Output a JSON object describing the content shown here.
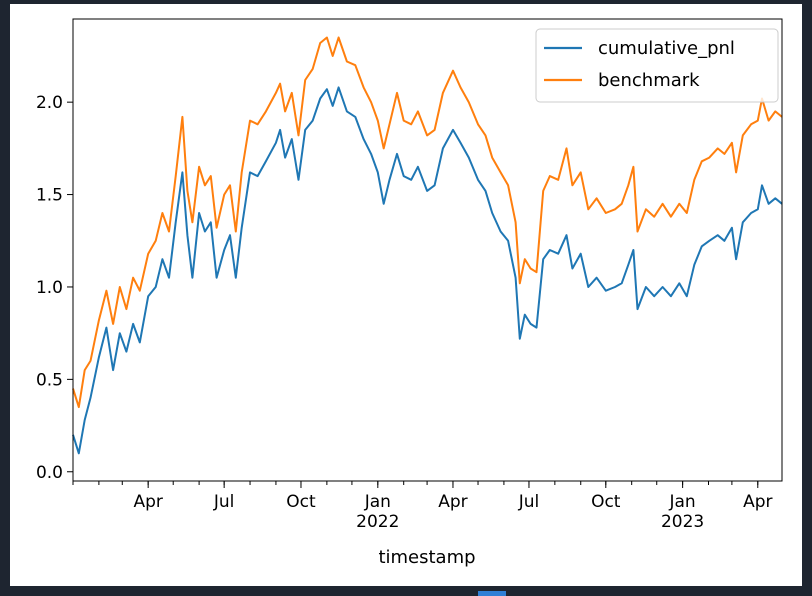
{
  "colors": {
    "background": "#1e2530",
    "figure": "#ffffff",
    "series_pnl": "#1f77b4",
    "series_benchmark": "#ff7f0e",
    "taskbar_accent": "#2f7fd6"
  },
  "chart_data": {
    "type": "line",
    "title": "",
    "xlabel": "timestamp",
    "ylabel": "",
    "grid": false,
    "legend_position": "top-right",
    "x_range": [
      "2021-01-01",
      "2023-04-30"
    ],
    "ylim": [
      -0.05,
      2.45
    ],
    "y_ticks": [
      0.0,
      0.5,
      1.0,
      1.5,
      2.0
    ],
    "y_tick_labels": [
      "0.0",
      "0.5",
      "1.0",
      "1.5",
      "2.0"
    ],
    "x_ticks": [
      {
        "date": "2021-04-01",
        "label": "Apr",
        "sublabel": ""
      },
      {
        "date": "2021-07-01",
        "label": "Jul",
        "sublabel": ""
      },
      {
        "date": "2021-10-01",
        "label": "Oct",
        "sublabel": ""
      },
      {
        "date": "2022-01-01",
        "label": "Jan",
        "sublabel": "2022"
      },
      {
        "date": "2022-04-01",
        "label": "Apr",
        "sublabel": ""
      },
      {
        "date": "2022-07-01",
        "label": "Jul",
        "sublabel": ""
      },
      {
        "date": "2022-10-01",
        "label": "Oct",
        "sublabel": ""
      },
      {
        "date": "2023-01-01",
        "label": "Jan",
        "sublabel": "2023"
      },
      {
        "date": "2023-04-01",
        "label": "Apr",
        "sublabel": ""
      }
    ],
    "series": [
      {
        "name": "cumulative_pnl",
        "color": "#1f77b4",
        "points": [
          [
            "2021-01-01",
            0.2
          ],
          [
            "2021-01-08",
            0.1
          ],
          [
            "2021-01-15",
            0.28
          ],
          [
            "2021-01-22",
            0.4
          ],
          [
            "2021-02-01",
            0.62
          ],
          [
            "2021-02-10",
            0.78
          ],
          [
            "2021-02-18",
            0.55
          ],
          [
            "2021-02-26",
            0.75
          ],
          [
            "2021-03-06",
            0.65
          ],
          [
            "2021-03-14",
            0.8
          ],
          [
            "2021-03-22",
            0.7
          ],
          [
            "2021-04-01",
            0.95
          ],
          [
            "2021-04-10",
            1.0
          ],
          [
            "2021-04-18",
            1.15
          ],
          [
            "2021-04-26",
            1.05
          ],
          [
            "2021-05-04",
            1.35
          ],
          [
            "2021-05-12",
            1.62
          ],
          [
            "2021-05-18",
            1.28
          ],
          [
            "2021-05-24",
            1.05
          ],
          [
            "2021-06-01",
            1.4
          ],
          [
            "2021-06-08",
            1.3
          ],
          [
            "2021-06-15",
            1.35
          ],
          [
            "2021-06-22",
            1.05
          ],
          [
            "2021-07-01",
            1.2
          ],
          [
            "2021-07-08",
            1.28
          ],
          [
            "2021-07-15",
            1.05
          ],
          [
            "2021-07-22",
            1.32
          ],
          [
            "2021-08-01",
            1.62
          ],
          [
            "2021-08-10",
            1.6
          ],
          [
            "2021-08-20",
            1.68
          ],
          [
            "2021-09-01",
            1.78
          ],
          [
            "2021-09-06",
            1.85
          ],
          [
            "2021-09-12",
            1.7
          ],
          [
            "2021-09-20",
            1.8
          ],
          [
            "2021-09-28",
            1.58
          ],
          [
            "2021-10-06",
            1.85
          ],
          [
            "2021-10-15",
            1.9
          ],
          [
            "2021-10-24",
            2.02
          ],
          [
            "2021-11-01",
            2.07
          ],
          [
            "2021-11-08",
            1.98
          ],
          [
            "2021-11-15",
            2.08
          ],
          [
            "2021-11-25",
            1.95
          ],
          [
            "2021-12-05",
            1.92
          ],
          [
            "2021-12-15",
            1.8
          ],
          [
            "2021-12-24",
            1.72
          ],
          [
            "2022-01-01",
            1.62
          ],
          [
            "2022-01-08",
            1.45
          ],
          [
            "2022-01-15",
            1.58
          ],
          [
            "2022-01-24",
            1.72
          ],
          [
            "2022-02-01",
            1.6
          ],
          [
            "2022-02-10",
            1.58
          ],
          [
            "2022-02-18",
            1.65
          ],
          [
            "2022-03-01",
            1.52
          ],
          [
            "2022-03-10",
            1.55
          ],
          [
            "2022-03-20",
            1.75
          ],
          [
            "2022-04-01",
            1.85
          ],
          [
            "2022-04-10",
            1.78
          ],
          [
            "2022-04-20",
            1.7
          ],
          [
            "2022-05-01",
            1.58
          ],
          [
            "2022-05-10",
            1.52
          ],
          [
            "2022-05-18",
            1.4
          ],
          [
            "2022-05-28",
            1.3
          ],
          [
            "2022-06-06",
            1.25
          ],
          [
            "2022-06-15",
            1.05
          ],
          [
            "2022-06-20",
            0.72
          ],
          [
            "2022-06-26",
            0.85
          ],
          [
            "2022-07-03",
            0.8
          ],
          [
            "2022-07-10",
            0.78
          ],
          [
            "2022-07-18",
            1.15
          ],
          [
            "2022-07-26",
            1.2
          ],
          [
            "2022-08-05",
            1.18
          ],
          [
            "2022-08-15",
            1.28
          ],
          [
            "2022-08-22",
            1.1
          ],
          [
            "2022-09-01",
            1.18
          ],
          [
            "2022-09-10",
            1.0
          ],
          [
            "2022-09-20",
            1.05
          ],
          [
            "2022-10-01",
            0.98
          ],
          [
            "2022-10-12",
            1.0
          ],
          [
            "2022-10-20",
            1.02
          ],
          [
            "2022-10-28",
            1.12
          ],
          [
            "2022-11-03",
            1.2
          ],
          [
            "2022-11-08",
            0.88
          ],
          [
            "2022-11-18",
            1.0
          ],
          [
            "2022-11-28",
            0.95
          ],
          [
            "2022-12-08",
            1.0
          ],
          [
            "2022-12-18",
            0.95
          ],
          [
            "2022-12-28",
            1.02
          ],
          [
            "2023-01-06",
            0.95
          ],
          [
            "2023-01-15",
            1.12
          ],
          [
            "2023-01-24",
            1.22
          ],
          [
            "2023-02-02",
            1.25
          ],
          [
            "2023-02-12",
            1.28
          ],
          [
            "2023-02-20",
            1.25
          ],
          [
            "2023-03-01",
            1.32
          ],
          [
            "2023-03-06",
            1.15
          ],
          [
            "2023-03-14",
            1.35
          ],
          [
            "2023-03-24",
            1.4
          ],
          [
            "2023-04-01",
            1.42
          ],
          [
            "2023-04-06",
            1.55
          ],
          [
            "2023-04-14",
            1.45
          ],
          [
            "2023-04-22",
            1.48
          ],
          [
            "2023-04-30",
            1.45
          ]
        ]
      },
      {
        "name": "benchmark",
        "color": "#ff7f0e",
        "points": [
          [
            "2021-01-01",
            0.45
          ],
          [
            "2021-01-08",
            0.35
          ],
          [
            "2021-01-15",
            0.55
          ],
          [
            "2021-01-22",
            0.6
          ],
          [
            "2021-02-01",
            0.82
          ],
          [
            "2021-02-10",
            0.98
          ],
          [
            "2021-02-18",
            0.8
          ],
          [
            "2021-02-26",
            1.0
          ],
          [
            "2021-03-06",
            0.88
          ],
          [
            "2021-03-14",
            1.05
          ],
          [
            "2021-03-22",
            0.98
          ],
          [
            "2021-04-01",
            1.18
          ],
          [
            "2021-04-10",
            1.25
          ],
          [
            "2021-04-18",
            1.4
          ],
          [
            "2021-04-26",
            1.3
          ],
          [
            "2021-05-04",
            1.6
          ],
          [
            "2021-05-12",
            1.92
          ],
          [
            "2021-05-18",
            1.52
          ],
          [
            "2021-05-24",
            1.35
          ],
          [
            "2021-06-01",
            1.65
          ],
          [
            "2021-06-08",
            1.55
          ],
          [
            "2021-06-15",
            1.6
          ],
          [
            "2021-06-22",
            1.32
          ],
          [
            "2021-07-01",
            1.5
          ],
          [
            "2021-07-08",
            1.55
          ],
          [
            "2021-07-15",
            1.3
          ],
          [
            "2021-07-22",
            1.62
          ],
          [
            "2021-08-01",
            1.9
          ],
          [
            "2021-08-10",
            1.88
          ],
          [
            "2021-08-20",
            1.95
          ],
          [
            "2021-09-01",
            2.05
          ],
          [
            "2021-09-06",
            2.1
          ],
          [
            "2021-09-12",
            1.95
          ],
          [
            "2021-09-20",
            2.05
          ],
          [
            "2021-09-28",
            1.82
          ],
          [
            "2021-10-06",
            2.12
          ],
          [
            "2021-10-15",
            2.18
          ],
          [
            "2021-10-24",
            2.32
          ],
          [
            "2021-11-01",
            2.35
          ],
          [
            "2021-11-08",
            2.25
          ],
          [
            "2021-11-15",
            2.35
          ],
          [
            "2021-11-25",
            2.22
          ],
          [
            "2021-12-05",
            2.2
          ],
          [
            "2021-12-15",
            2.08
          ],
          [
            "2021-12-24",
            2.0
          ],
          [
            "2022-01-01",
            1.9
          ],
          [
            "2022-01-08",
            1.75
          ],
          [
            "2022-01-15",
            1.88
          ],
          [
            "2022-01-24",
            2.05
          ],
          [
            "2022-02-01",
            1.9
          ],
          [
            "2022-02-10",
            1.88
          ],
          [
            "2022-02-18",
            1.95
          ],
          [
            "2022-03-01",
            1.82
          ],
          [
            "2022-03-10",
            1.85
          ],
          [
            "2022-03-20",
            2.05
          ],
          [
            "2022-04-01",
            2.17
          ],
          [
            "2022-04-10",
            2.08
          ],
          [
            "2022-04-20",
            2.0
          ],
          [
            "2022-05-01",
            1.88
          ],
          [
            "2022-05-10",
            1.82
          ],
          [
            "2022-05-18",
            1.7
          ],
          [
            "2022-05-28",
            1.62
          ],
          [
            "2022-06-06",
            1.55
          ],
          [
            "2022-06-15",
            1.35
          ],
          [
            "2022-06-20",
            1.02
          ],
          [
            "2022-06-26",
            1.15
          ],
          [
            "2022-07-03",
            1.1
          ],
          [
            "2022-07-10",
            1.08
          ],
          [
            "2022-07-18",
            1.52
          ],
          [
            "2022-07-26",
            1.6
          ],
          [
            "2022-08-05",
            1.58
          ],
          [
            "2022-08-15",
            1.75
          ],
          [
            "2022-08-22",
            1.55
          ],
          [
            "2022-09-01",
            1.62
          ],
          [
            "2022-09-10",
            1.42
          ],
          [
            "2022-09-20",
            1.48
          ],
          [
            "2022-10-01",
            1.4
          ],
          [
            "2022-10-12",
            1.42
          ],
          [
            "2022-10-20",
            1.45
          ],
          [
            "2022-10-28",
            1.55
          ],
          [
            "2022-11-03",
            1.65
          ],
          [
            "2022-11-08",
            1.3
          ],
          [
            "2022-11-18",
            1.42
          ],
          [
            "2022-11-28",
            1.38
          ],
          [
            "2022-12-08",
            1.45
          ],
          [
            "2022-12-18",
            1.38
          ],
          [
            "2022-12-28",
            1.45
          ],
          [
            "2023-01-06",
            1.4
          ],
          [
            "2023-01-15",
            1.58
          ],
          [
            "2023-01-24",
            1.68
          ],
          [
            "2023-02-02",
            1.7
          ],
          [
            "2023-02-12",
            1.75
          ],
          [
            "2023-02-20",
            1.72
          ],
          [
            "2023-03-01",
            1.78
          ],
          [
            "2023-03-06",
            1.62
          ],
          [
            "2023-03-14",
            1.82
          ],
          [
            "2023-03-24",
            1.88
          ],
          [
            "2023-04-01",
            1.9
          ],
          [
            "2023-04-06",
            2.02
          ],
          [
            "2023-04-14",
            1.9
          ],
          [
            "2023-04-22",
            1.95
          ],
          [
            "2023-04-30",
            1.92
          ]
        ]
      }
    ]
  }
}
